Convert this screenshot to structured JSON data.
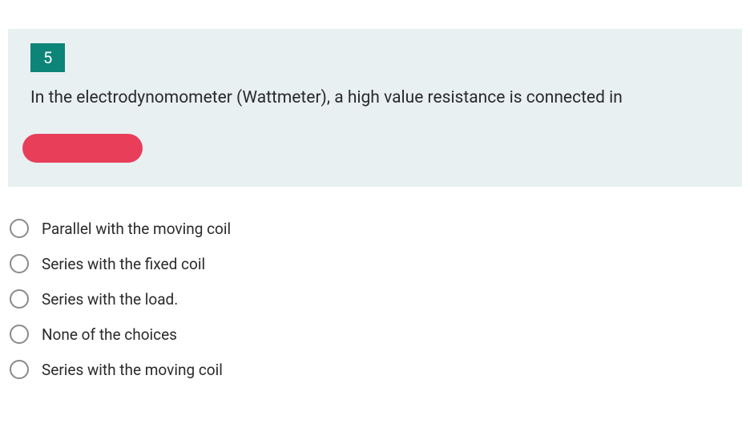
{
  "question": {
    "number": "5",
    "text": "In the electrodynomometer (Wattmeter), a high value resistance is connected in",
    "header_bg": "#e8f0f2",
    "number_bg": "#0d8478",
    "number_color": "#ffffff",
    "text_color": "#2a2a2a",
    "redaction_color": "#e83e5a"
  },
  "options": [
    {
      "label": "Parallel with the moving coil"
    },
    {
      "label": "Series with the fixed coil"
    },
    {
      "label": "Series with the load."
    },
    {
      "label": "None of the choices"
    },
    {
      "label": "Series with the moving coil"
    }
  ],
  "radio_border": "#8a8a8a"
}
